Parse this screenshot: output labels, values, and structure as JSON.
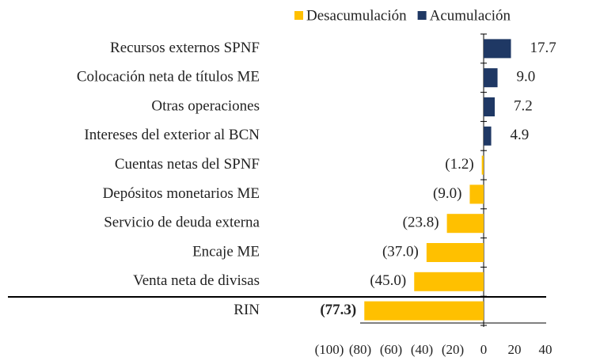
{
  "chart_data": {
    "type": "hbar",
    "categories": [
      "Recursos externos SPNF",
      "Colocación neta de títulos ME",
      "Otras operaciones",
      "Intereses del exterior al BCN",
      "Cuentas netas del SPNF",
      "Depósitos monetarios ME",
      "Servicio de deuda externa",
      "Encaje ME",
      "Venta neta de divisas",
      "RIN"
    ],
    "series": [
      {
        "name": "Desacumulación",
        "color": "#FFC000",
        "values": [
          null,
          null,
          null,
          null,
          -1.2,
          -9.0,
          -23.8,
          -37.0,
          -45.0,
          -77.3
        ],
        "value_labels": [
          null,
          null,
          null,
          null,
          "(1.2)",
          "(9.0)",
          "(23.8)",
          "(37.0)",
          "(45.0)",
          "(77.3)"
        ]
      },
      {
        "name": "Acumulación",
        "color": "#1F3864",
        "values": [
          17.7,
          9.0,
          7.2,
          4.9,
          null,
          null,
          null,
          null,
          null,
          null
        ],
        "value_labels": [
          "17.7",
          "9.0",
          "7.2",
          "4.9",
          null,
          null,
          null,
          null,
          null,
          null
        ]
      }
    ],
    "xlim": [
      -100,
      40
    ],
    "xticks": [
      {
        "value": -100,
        "label": "(100)"
      },
      {
        "value": -80,
        "label": "(80)"
      },
      {
        "value": -60,
        "label": "(60)"
      },
      {
        "value": -40,
        "label": "(40)"
      },
      {
        "value": -20,
        "label": "(20)"
      },
      0,
      20,
      40
    ],
    "legend": "top"
  }
}
